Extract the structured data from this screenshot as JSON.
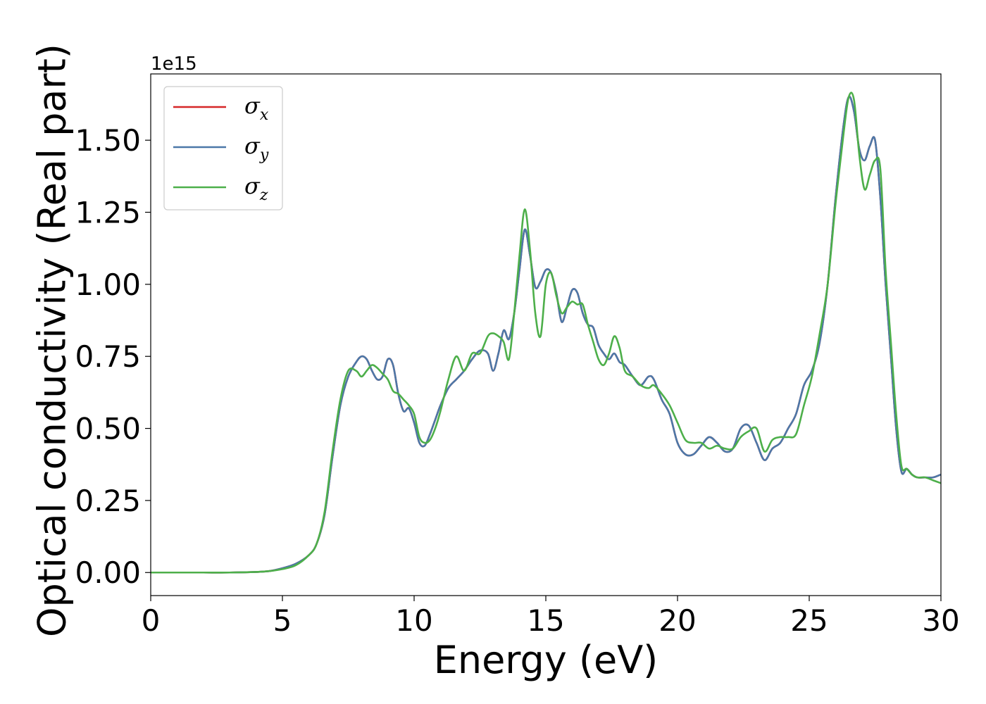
{
  "chart_data": {
    "type": "line",
    "title": "",
    "xlabel": "Energy (eV)",
    "ylabel": "Optical conductivity (Real part)",
    "y_offset_label": "1e15",
    "xlim": [
      0,
      30
    ],
    "ylim": [
      -0.08,
      1.73
    ],
    "x_ticks": [
      0,
      5,
      10,
      15,
      20,
      25,
      30
    ],
    "x_tick_labels": [
      "0",
      "5",
      "10",
      "15",
      "20",
      "25",
      "30"
    ],
    "y_ticks": [
      0,
      0.25,
      0.5,
      0.75,
      1.0,
      1.25,
      1.5
    ],
    "y_tick_labels": [
      "0.00",
      "0.25",
      "0.50",
      "0.75",
      "1.00",
      "1.25",
      "1.50"
    ],
    "grid": false,
    "legend_position": "top-left",
    "series": [
      {
        "name": "σx",
        "legend_symbol": "σ",
        "legend_subscript": "x",
        "color": "#d62728",
        "x": [
          0,
          1,
          2,
          3,
          4,
          4.5,
          5,
          5.5,
          6,
          6.3,
          6.6,
          6.9,
          7.2,
          7.5,
          7.8,
          8.0,
          8.2,
          8.4,
          8.6,
          8.8,
          9.0,
          9.2,
          9.4,
          9.6,
          9.8,
          10.0,
          10.2,
          10.4,
          10.6,
          10.8,
          11.0,
          11.3,
          11.6,
          11.9,
          12.2,
          12.5,
          12.8,
          13.0,
          13.2,
          13.4,
          13.6,
          13.8,
          14.0,
          14.2,
          14.4,
          14.6,
          14.8,
          15.0,
          15.2,
          15.4,
          15.6,
          15.8,
          16.0,
          16.2,
          16.4,
          16.6,
          16.8,
          17.0,
          17.2,
          17.4,
          17.6,
          17.8,
          18.0,
          18.3,
          18.6,
          18.9,
          19.1,
          19.4,
          19.7,
          20.0,
          20.3,
          20.6,
          20.9,
          21.2,
          21.5,
          21.8,
          22.1,
          22.4,
          22.7,
          23.0,
          23.3,
          23.6,
          23.9,
          24.2,
          24.5,
          24.8,
          25.1,
          25.4,
          25.7,
          26.0,
          26.3,
          26.5,
          26.7,
          26.9,
          27.1,
          27.3,
          27.5,
          27.7,
          27.9,
          28.1,
          28.3,
          28.5,
          28.7,
          28.9,
          29.1,
          29.4,
          29.7,
          30.0
        ],
        "y": [
          0,
          0,
          0,
          0,
          0.002,
          0.005,
          0.015,
          0.03,
          0.06,
          0.1,
          0.2,
          0.4,
          0.58,
          0.68,
          0.73,
          0.75,
          0.74,
          0.7,
          0.67,
          0.68,
          0.74,
          0.72,
          0.62,
          0.56,
          0.57,
          0.52,
          0.45,
          0.44,
          0.48,
          0.53,
          0.58,
          0.64,
          0.67,
          0.7,
          0.74,
          0.77,
          0.76,
          0.7,
          0.76,
          0.84,
          0.81,
          0.9,
          1.05,
          1.19,
          1.1,
          0.99,
          1.01,
          1.05,
          1.04,
          0.97,
          0.87,
          0.92,
          0.98,
          0.97,
          0.9,
          0.86,
          0.85,
          0.79,
          0.76,
          0.74,
          0.76,
          0.73,
          0.72,
          0.68,
          0.65,
          0.68,
          0.67,
          0.6,
          0.55,
          0.45,
          0.41,
          0.41,
          0.44,
          0.47,
          0.45,
          0.42,
          0.43,
          0.5,
          0.51,
          0.45,
          0.39,
          0.43,
          0.45,
          0.5,
          0.55,
          0.65,
          0.7,
          0.8,
          1.0,
          1.3,
          1.55,
          1.65,
          1.6,
          1.47,
          1.43,
          1.48,
          1.5,
          1.3,
          1.0,
          0.75,
          0.5,
          0.35,
          0.36,
          0.34,
          0.33,
          0.33,
          0.33,
          0.34
        ]
      },
      {
        "name": "σy",
        "legend_symbol": "σ",
        "legend_subscript": "y",
        "color": "#4c78a8",
        "x": [
          0,
          1,
          2,
          3,
          4,
          4.5,
          5,
          5.5,
          6,
          6.3,
          6.6,
          6.9,
          7.2,
          7.5,
          7.8,
          8.0,
          8.2,
          8.4,
          8.6,
          8.8,
          9.0,
          9.2,
          9.4,
          9.6,
          9.8,
          10.0,
          10.2,
          10.4,
          10.6,
          10.8,
          11.0,
          11.3,
          11.6,
          11.9,
          12.2,
          12.5,
          12.8,
          13.0,
          13.2,
          13.4,
          13.6,
          13.8,
          14.0,
          14.2,
          14.4,
          14.6,
          14.8,
          15.0,
          15.2,
          15.4,
          15.6,
          15.8,
          16.0,
          16.2,
          16.4,
          16.6,
          16.8,
          17.0,
          17.2,
          17.4,
          17.6,
          17.8,
          18.0,
          18.3,
          18.6,
          18.9,
          19.1,
          19.4,
          19.7,
          20.0,
          20.3,
          20.6,
          20.9,
          21.2,
          21.5,
          21.8,
          22.1,
          22.4,
          22.7,
          23.0,
          23.3,
          23.6,
          23.9,
          24.2,
          24.5,
          24.8,
          25.1,
          25.4,
          25.7,
          26.0,
          26.3,
          26.5,
          26.7,
          26.9,
          27.1,
          27.3,
          27.5,
          27.7,
          27.9,
          28.1,
          28.3,
          28.5,
          28.7,
          28.9,
          29.1,
          29.4,
          29.7,
          30.0
        ],
        "y": [
          0,
          0,
          0,
          0,
          0.002,
          0.005,
          0.015,
          0.03,
          0.06,
          0.1,
          0.2,
          0.4,
          0.58,
          0.68,
          0.73,
          0.75,
          0.74,
          0.7,
          0.67,
          0.68,
          0.74,
          0.72,
          0.62,
          0.56,
          0.57,
          0.52,
          0.45,
          0.44,
          0.48,
          0.53,
          0.58,
          0.64,
          0.67,
          0.7,
          0.74,
          0.77,
          0.76,
          0.7,
          0.76,
          0.84,
          0.81,
          0.9,
          1.05,
          1.19,
          1.1,
          0.99,
          1.01,
          1.05,
          1.04,
          0.97,
          0.87,
          0.92,
          0.98,
          0.97,
          0.9,
          0.86,
          0.85,
          0.79,
          0.76,
          0.74,
          0.76,
          0.73,
          0.72,
          0.68,
          0.65,
          0.68,
          0.67,
          0.6,
          0.55,
          0.45,
          0.41,
          0.41,
          0.44,
          0.47,
          0.45,
          0.42,
          0.43,
          0.5,
          0.51,
          0.45,
          0.39,
          0.43,
          0.45,
          0.5,
          0.55,
          0.65,
          0.7,
          0.8,
          1.0,
          1.3,
          1.55,
          1.65,
          1.6,
          1.47,
          1.43,
          1.48,
          1.5,
          1.3,
          1.0,
          0.75,
          0.5,
          0.35,
          0.36,
          0.34,
          0.33,
          0.33,
          0.33,
          0.34
        ]
      },
      {
        "name": "σz",
        "legend_symbol": "σ",
        "legend_subscript": "z",
        "color": "#4daf4a",
        "x": [
          0,
          1,
          2,
          3,
          4,
          4.5,
          5,
          5.5,
          6,
          6.3,
          6.6,
          6.9,
          7.2,
          7.5,
          7.8,
          8.0,
          8.2,
          8.4,
          8.6,
          8.8,
          9.0,
          9.2,
          9.4,
          9.6,
          9.8,
          10.0,
          10.2,
          10.4,
          10.6,
          10.8,
          11.0,
          11.3,
          11.6,
          11.9,
          12.2,
          12.5,
          12.8,
          13.0,
          13.2,
          13.4,
          13.6,
          13.8,
          14.0,
          14.2,
          14.4,
          14.6,
          14.8,
          15.0,
          15.2,
          15.4,
          15.6,
          15.8,
          16.0,
          16.2,
          16.4,
          16.6,
          16.8,
          17.0,
          17.2,
          17.4,
          17.6,
          17.8,
          18.0,
          18.3,
          18.6,
          18.9,
          19.1,
          19.4,
          19.7,
          20.0,
          20.3,
          20.6,
          20.9,
          21.2,
          21.5,
          21.8,
          22.1,
          22.4,
          22.7,
          23.0,
          23.3,
          23.6,
          23.9,
          24.2,
          24.5,
          24.8,
          25.1,
          25.4,
          25.7,
          26.0,
          26.3,
          26.5,
          26.7,
          26.9,
          27.1,
          27.3,
          27.5,
          27.7,
          27.9,
          28.1,
          28.3,
          28.5,
          28.7,
          28.9,
          29.1,
          29.4,
          29.7,
          30.0
        ],
        "y": [
          0,
          0,
          0,
          0,
          0.002,
          0.005,
          0.012,
          0.025,
          0.06,
          0.1,
          0.21,
          0.42,
          0.6,
          0.7,
          0.7,
          0.68,
          0.7,
          0.72,
          0.71,
          0.69,
          0.67,
          0.63,
          0.62,
          0.6,
          0.58,
          0.55,
          0.47,
          0.45,
          0.46,
          0.5,
          0.56,
          0.67,
          0.75,
          0.7,
          0.76,
          0.76,
          0.82,
          0.83,
          0.82,
          0.8,
          0.74,
          0.9,
          1.1,
          1.26,
          1.12,
          0.9,
          0.82,
          1.0,
          1.04,
          0.96,
          0.9,
          0.92,
          0.94,
          0.93,
          0.93,
          0.86,
          0.8,
          0.74,
          0.72,
          0.76,
          0.82,
          0.78,
          0.7,
          0.68,
          0.65,
          0.64,
          0.65,
          0.62,
          0.58,
          0.52,
          0.46,
          0.45,
          0.45,
          0.43,
          0.44,
          0.43,
          0.43,
          0.47,
          0.49,
          0.5,
          0.42,
          0.46,
          0.47,
          0.47,
          0.48,
          0.58,
          0.68,
          0.83,
          1.0,
          1.28,
          1.52,
          1.65,
          1.64,
          1.45,
          1.33,
          1.38,
          1.43,
          1.4,
          1.05,
          0.8,
          0.55,
          0.37,
          0.36,
          0.34,
          0.33,
          0.33,
          0.32,
          0.31
        ]
      }
    ]
  }
}
